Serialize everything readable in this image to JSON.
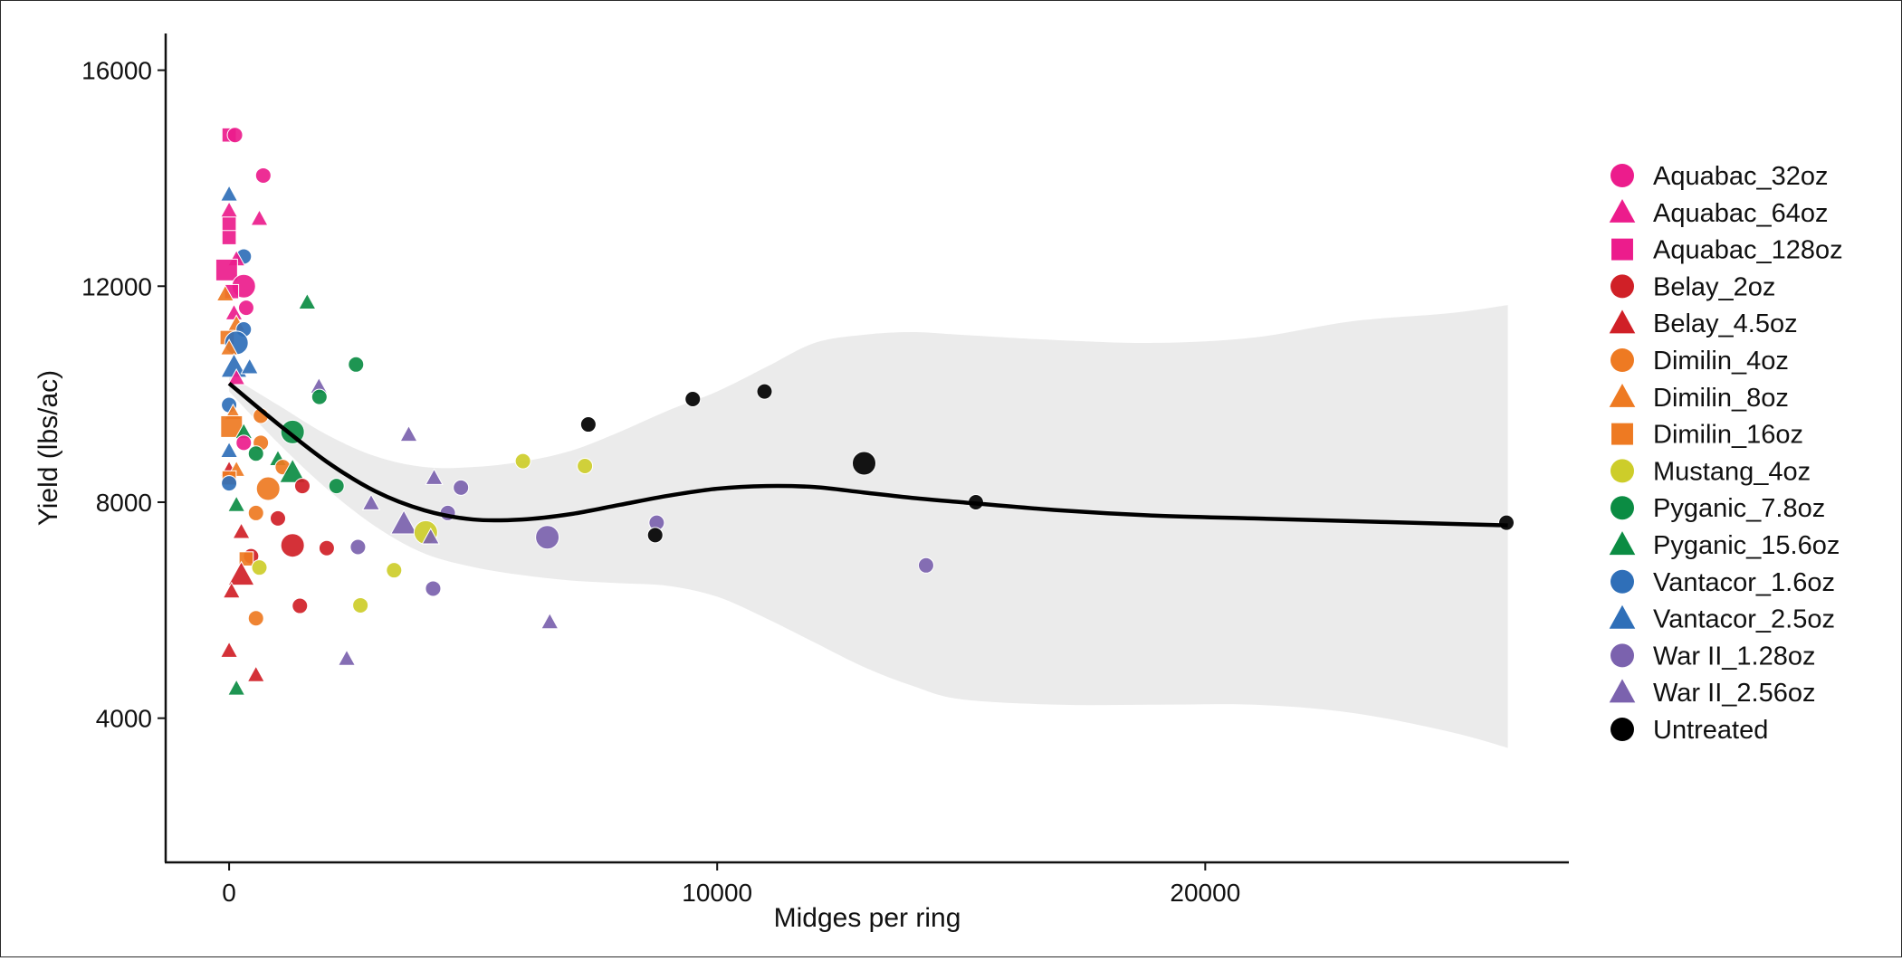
{
  "chart_data": {
    "type": "scatter",
    "title": "",
    "xlabel": "Midges per ring",
    "ylabel": "Yield (lbs/ac)",
    "xlim": [
      -1300,
      27450
    ],
    "ylim": [
      1330,
      16680
    ],
    "xticks": [
      0,
      10000,
      20000
    ],
    "yticks": [
      4000,
      8000,
      12000,
      16000
    ],
    "xtick_labels": [
      "0",
      "10000",
      "20000"
    ],
    "ytick_labels": [
      "4000",
      "8000",
      "12000",
      "16000"
    ],
    "grid": false,
    "legend_position": "right",
    "legend": [
      {
        "name": "Aquabac_32oz",
        "shape": "circle",
        "color": "#ec1c8c"
      },
      {
        "name": "Aquabac_64oz",
        "shape": "triangle",
        "color": "#ec1c8c"
      },
      {
        "name": "Aquabac_128oz",
        "shape": "square",
        "color": "#ec1c8c"
      },
      {
        "name": "Belay_2oz",
        "shape": "circle",
        "color": "#d02027"
      },
      {
        "name": "Belay_4.5oz",
        "shape": "triangle",
        "color": "#d02027"
      },
      {
        "name": "Dimilin_4oz",
        "shape": "circle",
        "color": "#ee7a22"
      },
      {
        "name": "Dimilin_8oz",
        "shape": "triangle",
        "color": "#ee7a22"
      },
      {
        "name": "Dimilin_16oz",
        "shape": "square",
        "color": "#ee7a22"
      },
      {
        "name": "Mustang_4oz",
        "shape": "circle",
        "color": "#cdcd2a"
      },
      {
        "name": "Pyganic_7.8oz",
        "shape": "circle",
        "color": "#0b8c43"
      },
      {
        "name": "Pyganic_15.6oz",
        "shape": "triangle",
        "color": "#0b8c43"
      },
      {
        "name": "Vantacor_1.6oz",
        "shape": "circle",
        "color": "#2f6fb8"
      },
      {
        "name": "Vantacor_2.5oz",
        "shape": "triangle",
        "color": "#2f6fb8"
      },
      {
        "name": "War II_1.28oz",
        "shape": "circle",
        "color": "#7b62ae"
      },
      {
        "name": "War II_2.56oz",
        "shape": "triangle",
        "color": "#7b62ae"
      },
      {
        "name": "Untreated",
        "shape": "circle",
        "color": "#000000"
      }
    ],
    "smooth": {
      "method": "loess",
      "color": "#000000",
      "band_color": "#ebebeb",
      "x": [
        0,
        1000,
        2000,
        3000,
        4000,
        5000,
        6000,
        7000,
        8000,
        9000,
        10000,
        11000,
        12000,
        13000,
        14000,
        15000,
        17000,
        19000,
        21000,
        23000,
        25000,
        26200
      ],
      "y": [
        10200,
        9450,
        8750,
        8200,
        7850,
        7680,
        7680,
        7780,
        7950,
        8120,
        8250,
        8300,
        8280,
        8180,
        8080,
        8000,
        7850,
        7750,
        7700,
        7650,
        7600,
        7570
      ],
      "lower": [
        10050,
        9100,
        8250,
        7550,
        7050,
        6800,
        6650,
        6550,
        6500,
        6450,
        6250,
        5850,
        5400,
        4950,
        4600,
        4350,
        4250,
        4250,
        4250,
        4100,
        3750,
        3450
      ],
      "upper": [
        10350,
        9800,
        9250,
        8850,
        8650,
        8650,
        8750,
        8950,
        9300,
        9700,
        10050,
        10500,
        10950,
        11100,
        11150,
        11100,
        11000,
        10950,
        11050,
        11350,
        11500,
        11650
      ]
    },
    "points": [
      {
        "group": "Aquabac_128oz",
        "x": 0,
        "y": 14800,
        "size": 1
      },
      {
        "group": "Aquabac_32oz",
        "x": 120,
        "y": 14800,
        "size": 1
      },
      {
        "group": "Aquabac_32oz",
        "x": 700,
        "y": 14050,
        "size": 1
      },
      {
        "group": "Vantacor_2.5oz",
        "x": 0,
        "y": 13700,
        "size": 1
      },
      {
        "group": "Aquabac_64oz",
        "x": 0,
        "y": 13400,
        "size": 1
      },
      {
        "group": "Aquabac_64oz",
        "x": 620,
        "y": 13250,
        "size": 1
      },
      {
        "group": "Aquabac_128oz",
        "x": 0,
        "y": 13150,
        "size": 1
      },
      {
        "group": "Aquabac_128oz",
        "x": 0,
        "y": 12900,
        "size": 1
      },
      {
        "group": "Vantacor_1.6oz",
        "x": 300,
        "y": 12550,
        "size": 1
      },
      {
        "group": "Aquabac_64oz",
        "x": 150,
        "y": 12500,
        "size": 1
      },
      {
        "group": "Aquabac_128oz",
        "x": -50,
        "y": 12300,
        "size": 2
      },
      {
        "group": "Aquabac_32oz",
        "x": 300,
        "y": 12000,
        "size": 2
      },
      {
        "group": "Aquabac_128oz",
        "x": 50,
        "y": 11900,
        "size": 1
      },
      {
        "group": "Dimilin_8oz",
        "x": -80,
        "y": 11850,
        "size": 1
      },
      {
        "group": "Aquabac_32oz",
        "x": 350,
        "y": 11600,
        "size": 1
      },
      {
        "group": "Aquabac_64oz",
        "x": 100,
        "y": 11500,
        "size": 1
      },
      {
        "group": "Pyganic_15.6oz",
        "x": 1600,
        "y": 11700,
        "size": 1
      },
      {
        "group": "Dimilin_8oz",
        "x": 150,
        "y": 11300,
        "size": 1
      },
      {
        "group": "Vantacor_1.6oz",
        "x": 300,
        "y": 11200,
        "size": 1
      },
      {
        "group": "Dimilin_16oz",
        "x": -40,
        "y": 11050,
        "size": 1
      },
      {
        "group": "Vantacor_1.6oz",
        "x": 150,
        "y": 10950,
        "size": 2
      },
      {
        "group": "Dimilin_8oz",
        "x": 0,
        "y": 10850,
        "size": 1
      },
      {
        "group": "Pyganic_7.8oz",
        "x": 2600,
        "y": 10550,
        "size": 1
      },
      {
        "group": "Vantacor_2.5oz",
        "x": 100,
        "y": 10500,
        "size": 2
      },
      {
        "group": "Vantacor_2.5oz",
        "x": 420,
        "y": 10500,
        "size": 1
      },
      {
        "group": "Aquabac_64oz",
        "x": 150,
        "y": 10300,
        "size": 1
      },
      {
        "group": "War II_2.56oz",
        "x": 1840,
        "y": 10140,
        "size": 1
      },
      {
        "group": "Pyganic_7.8oz",
        "x": 1850,
        "y": 9950,
        "size": 1
      },
      {
        "group": "Vantacor_1.6oz",
        "x": 0,
        "y": 9800,
        "size": 1
      },
      {
        "group": "Dimilin_8oz",
        "x": 80,
        "y": 9650,
        "size": 1
      },
      {
        "group": "Dimilin_4oz",
        "x": 650,
        "y": 9600,
        "size": 1
      },
      {
        "group": "Dimilin_16oz",
        "x": 50,
        "y": 9400,
        "size": 2
      },
      {
        "group": "Pyganic_15.6oz",
        "x": 300,
        "y": 9300,
        "size": 1
      },
      {
        "group": "Pyganic_7.8oz",
        "x": 1300,
        "y": 9300,
        "size": 2
      },
      {
        "group": "War II_2.56oz",
        "x": 3680,
        "y": 9250,
        "size": 1
      },
      {
        "group": "Untreated",
        "x": 7360,
        "y": 9440,
        "size": 1
      },
      {
        "group": "Untreated",
        "x": 9500,
        "y": 9910,
        "size": 1
      },
      {
        "group": "Untreated",
        "x": 10970,
        "y": 10050,
        "size": 1
      },
      {
        "group": "Aquabac_32oz",
        "x": 300,
        "y": 9100,
        "size": 1
      },
      {
        "group": "Dimilin_4oz",
        "x": 650,
        "y": 9100,
        "size": 1
      },
      {
        "group": "Vantacor_2.5oz",
        "x": 0,
        "y": 8950,
        "size": 1
      },
      {
        "group": "Pyganic_7.8oz",
        "x": 550,
        "y": 8900,
        "size": 1
      },
      {
        "group": "Pyganic_15.6oz",
        "x": 1000,
        "y": 8800,
        "size": 1
      },
      {
        "group": "Mustang_4oz",
        "x": 6020,
        "y": 8760,
        "size": 1
      },
      {
        "group": "Mustang_4oz",
        "x": 7290,
        "y": 8670,
        "size": 1
      },
      {
        "group": "Belay_4.5oz",
        "x": 0,
        "y": 8600,
        "size": 1
      },
      {
        "group": "Dimilin_8oz",
        "x": 150,
        "y": 8600,
        "size": 1
      },
      {
        "group": "Dimilin_4oz",
        "x": 1100,
        "y": 8650,
        "size": 1
      },
      {
        "group": "Pyganic_15.6oz",
        "x": 1300,
        "y": 8550,
        "size": 2
      },
      {
        "group": "Dimilin_16oz",
        "x": 0,
        "y": 8450,
        "size": 1
      },
      {
        "group": "War II_2.56oz",
        "x": 4200,
        "y": 8450,
        "size": 1
      },
      {
        "group": "Vantacor_1.6oz",
        "x": 0,
        "y": 8350,
        "size": 1
      },
      {
        "group": "Belay_2oz",
        "x": 1500,
        "y": 8300,
        "size": 1
      },
      {
        "group": "Pyganic_7.8oz",
        "x": 2200,
        "y": 8300,
        "size": 1
      },
      {
        "group": "War II_1.28oz",
        "x": 4750,
        "y": 8270,
        "size": 1
      },
      {
        "group": "Dimilin_4oz",
        "x": 800,
        "y": 8250,
        "size": 2
      },
      {
        "group": "Pyganic_15.6oz",
        "x": 150,
        "y": 7950,
        "size": 1
      },
      {
        "group": "War II_2.56oz",
        "x": 2910,
        "y": 7980,
        "size": 1
      },
      {
        "group": "Dimilin_4oz",
        "x": 550,
        "y": 7800,
        "size": 1
      },
      {
        "group": "War II_1.28oz",
        "x": 4480,
        "y": 7800,
        "size": 1
      },
      {
        "group": "Belay_2oz",
        "x": 1000,
        "y": 7700,
        "size": 1
      },
      {
        "group": "War II_2.56oz",
        "x": 3580,
        "y": 7600,
        "size": 2
      },
      {
        "group": "War II_1.28oz",
        "x": 8760,
        "y": 7620,
        "size": 1
      },
      {
        "group": "Belay_4.5oz",
        "x": 250,
        "y": 7450,
        "size": 1
      },
      {
        "group": "Mustang_4oz",
        "x": 4030,
        "y": 7440,
        "size": 2
      },
      {
        "group": "War II_2.56oz",
        "x": 4130,
        "y": 7350,
        "size": 1
      },
      {
        "group": "Untreated",
        "x": 8730,
        "y": 7390,
        "size": 1
      },
      {
        "group": "War II_1.28oz",
        "x": 6520,
        "y": 7350,
        "size": 2
      },
      {
        "group": "Belay_2oz",
        "x": 1300,
        "y": 7200,
        "size": 2
      },
      {
        "group": "Belay_2oz",
        "x": 2000,
        "y": 7150,
        "size": 1
      },
      {
        "group": "War II_1.28oz",
        "x": 2640,
        "y": 7170,
        "size": 1
      },
      {
        "group": "Belay_2oz",
        "x": 450,
        "y": 7000,
        "size": 1
      },
      {
        "group": "Dimilin_16oz",
        "x": 350,
        "y": 6950,
        "size": 1
      },
      {
        "group": "Mustang_4oz",
        "x": 620,
        "y": 6790,
        "size": 1
      },
      {
        "group": "Mustang_4oz",
        "x": 3380,
        "y": 6740,
        "size": 1
      },
      {
        "group": "War II_1.28oz",
        "x": 14280,
        "y": 6830,
        "size": 1
      },
      {
        "group": "Belay_4.5oz",
        "x": 250,
        "y": 6650,
        "size": 2
      },
      {
        "group": "Belay_4.5oz",
        "x": 50,
        "y": 6350,
        "size": 1
      },
      {
        "group": "War II_1.28oz",
        "x": 4180,
        "y": 6400,
        "size": 1
      },
      {
        "group": "Belay_2oz",
        "x": 1450,
        "y": 6080,
        "size": 1
      },
      {
        "group": "Mustang_4oz",
        "x": 2690,
        "y": 6090,
        "size": 1
      },
      {
        "group": "Dimilin_4oz",
        "x": 550,
        "y": 5850,
        "size": 1
      },
      {
        "group": "War II_2.56oz",
        "x": 6570,
        "y": 5780,
        "size": 1
      },
      {
        "group": "Belay_4.5oz",
        "x": 0,
        "y": 5250,
        "size": 1
      },
      {
        "group": "War II_2.56oz",
        "x": 2410,
        "y": 5100,
        "size": 1
      },
      {
        "group": "Belay_4.5oz",
        "x": 550,
        "y": 4800,
        "size": 1
      },
      {
        "group": "Pyganic_15.6oz",
        "x": 150,
        "y": 4550,
        "size": 1
      },
      {
        "group": "Untreated",
        "x": 13010,
        "y": 8720,
        "size": 2
      },
      {
        "group": "Untreated",
        "x": 15300,
        "y": 8000,
        "size": 1
      },
      {
        "group": "Untreated",
        "x": 26170,
        "y": 7620,
        "size": 1
      }
    ]
  }
}
